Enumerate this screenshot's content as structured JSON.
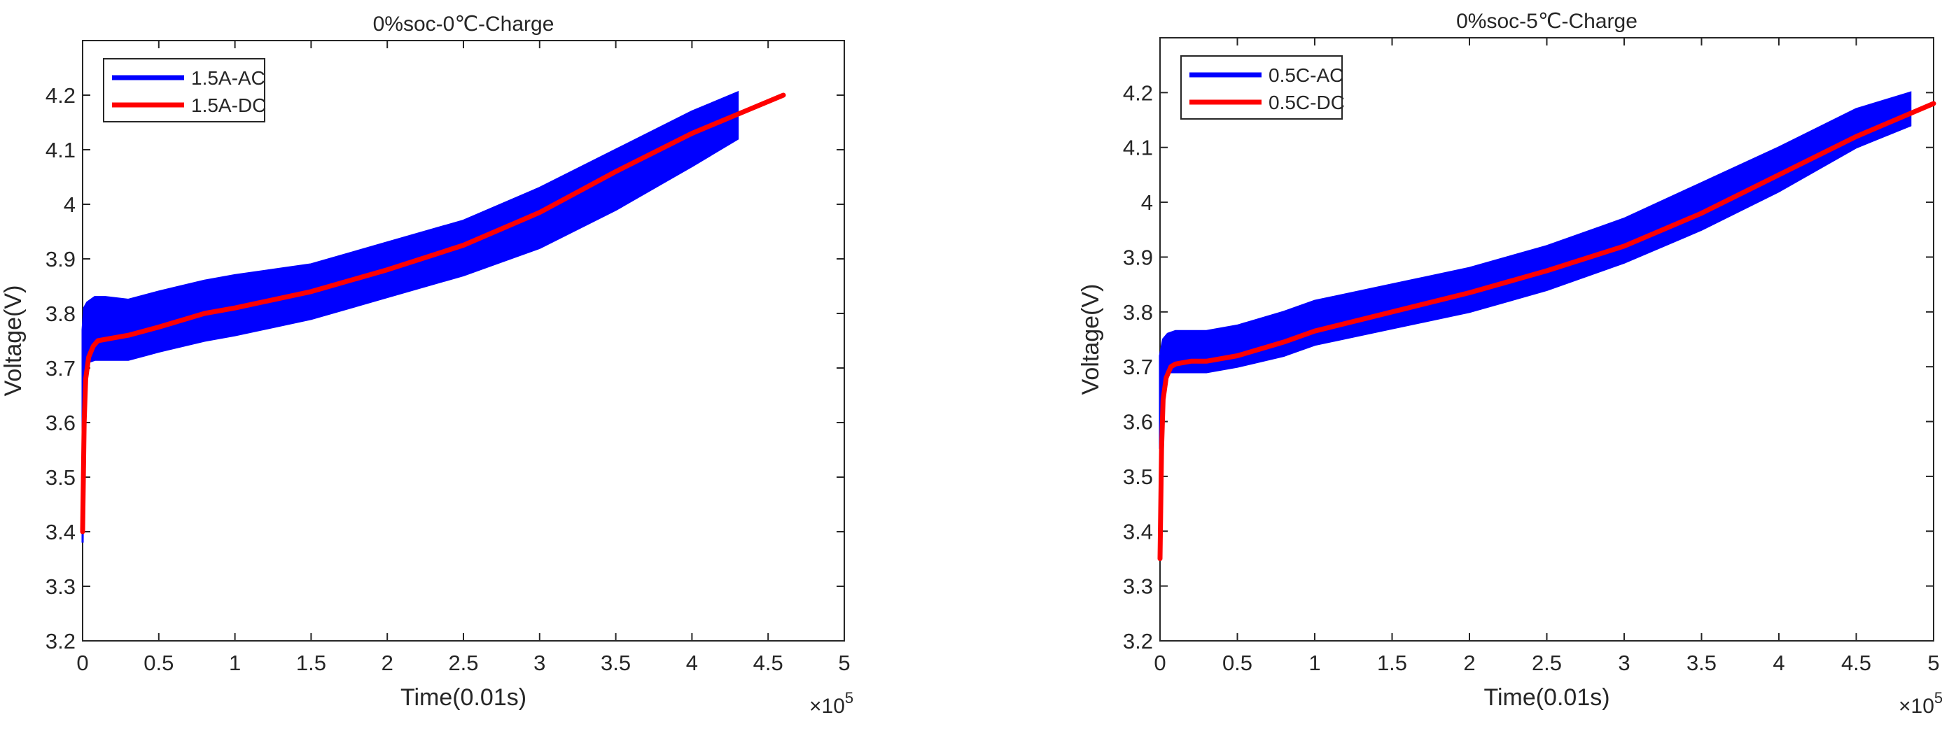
{
  "chart_data": [
    {
      "type": "line",
      "title": "0%soc-0℃-Charge",
      "xlabel": "Time(0.01s)",
      "ylabel": "Voltage(V)",
      "x_exponent_label": "×10",
      "x_exponent": "5",
      "xlim": [
        0,
        5
      ],
      "ylim": [
        3.2,
        4.3
      ],
      "x_ticks": [
        "0",
        "0.5",
        "1",
        "1.5",
        "2",
        "2.5",
        "3",
        "3.5",
        "4",
        "4.5",
        "5"
      ],
      "y_ticks": [
        "3.2",
        "3.3",
        "3.4",
        "3.5",
        "3.6",
        "3.7",
        "3.8",
        "3.9",
        "4",
        "4.1",
        "4.2"
      ],
      "legend_position": "top-left",
      "series": [
        {
          "name": "1.5A-AC",
          "color": "#0000ff",
          "kind": "band",
          "x": [
            0.0,
            0.01,
            0.03,
            0.08,
            0.15,
            0.3,
            0.5,
            0.8,
            1.0,
            1.5,
            2.0,
            2.5,
            3.0,
            3.5,
            4.0,
            4.3
          ],
          "upper": [
            3.77,
            3.81,
            3.82,
            3.83,
            3.83,
            3.825,
            3.84,
            3.86,
            3.87,
            3.89,
            3.93,
            3.97,
            4.03,
            4.1,
            4.17,
            4.205
          ],
          "lower": [
            3.38,
            3.68,
            3.71,
            3.715,
            3.715,
            3.715,
            3.73,
            3.75,
            3.76,
            3.79,
            3.83,
            3.87,
            3.92,
            3.99,
            4.07,
            4.12
          ]
        },
        {
          "name": "1.5A-DC",
          "color": "#ff0000",
          "kind": "line",
          "x": [
            0.0,
            0.01,
            0.02,
            0.04,
            0.07,
            0.1,
            0.2,
            0.3,
            0.5,
            0.8,
            1.0,
            1.5,
            2.0,
            2.5,
            3.0,
            3.5,
            4.0,
            4.3,
            4.6
          ],
          "values": [
            3.4,
            3.6,
            3.68,
            3.72,
            3.74,
            3.75,
            3.755,
            3.76,
            3.775,
            3.8,
            3.81,
            3.84,
            3.88,
            3.925,
            3.985,
            4.06,
            4.13,
            4.165,
            4.2
          ]
        }
      ]
    },
    {
      "type": "line",
      "title": "0%soc-5℃-Charge",
      "xlabel": "Time(0.01s)",
      "ylabel": "Voltage(V)",
      "x_exponent_label": "×10",
      "x_exponent": "5",
      "xlim": [
        0,
        5
      ],
      "ylim": [
        3.2,
        4.3
      ],
      "x_ticks": [
        "0",
        "0.5",
        "1",
        "1.5",
        "2",
        "2.5",
        "3",
        "3.5",
        "4",
        "4.5",
        "5"
      ],
      "y_ticks": [
        "3.2",
        "3.3",
        "3.4",
        "3.5",
        "3.6",
        "3.7",
        "3.8",
        "3.9",
        "4",
        "4.1",
        "4.2"
      ],
      "legend_position": "top-left",
      "series": [
        {
          "name": "0.5C-AC",
          "color": "#0000ff",
          "kind": "band",
          "x": [
            0.0,
            0.02,
            0.05,
            0.1,
            0.2,
            0.3,
            0.5,
            0.8,
            1.0,
            1.5,
            2.0,
            2.5,
            3.0,
            3.5,
            4.0,
            4.5,
            4.85
          ],
          "upper": [
            3.72,
            3.75,
            3.76,
            3.765,
            3.765,
            3.765,
            3.775,
            3.8,
            3.82,
            3.85,
            3.88,
            3.92,
            3.97,
            4.035,
            4.1,
            4.17,
            4.2
          ],
          "lower": [
            3.55,
            3.68,
            3.69,
            3.69,
            3.69,
            3.69,
            3.7,
            3.72,
            3.74,
            3.77,
            3.8,
            3.84,
            3.89,
            3.95,
            4.02,
            4.1,
            4.14
          ]
        },
        {
          "name": "0.5C-DC",
          "color": "#ff0000",
          "kind": "line",
          "x": [
            0.0,
            0.01,
            0.02,
            0.04,
            0.07,
            0.1,
            0.2,
            0.3,
            0.5,
            0.8,
            1.0,
            1.5,
            2.0,
            2.5,
            3.0,
            3.5,
            4.0,
            4.5,
            5.0
          ],
          "values": [
            3.35,
            3.55,
            3.64,
            3.68,
            3.7,
            3.705,
            3.71,
            3.71,
            3.72,
            3.745,
            3.765,
            3.8,
            3.835,
            3.875,
            3.92,
            3.98,
            4.05,
            4.12,
            4.18
          ]
        }
      ]
    }
  ]
}
